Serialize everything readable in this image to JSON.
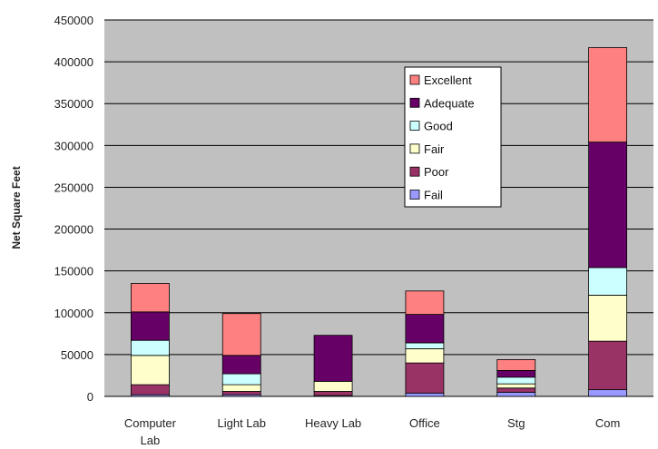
{
  "chart_data": {
    "type": "bar",
    "stacked": true,
    "categories": [
      [
        "Computer",
        "Lab"
      ],
      [
        "Light Lab"
      ],
      [
        "Heavy Lab"
      ],
      [
        "Office"
      ],
      [
        "Stg"
      ],
      [
        "Com"
      ]
    ],
    "ylabel": "Net Square Feet",
    "xlabel": "",
    "ylim": [
      0,
      450000
    ],
    "yticks": [
      "0",
      "50000",
      "100000",
      "150000",
      "200000",
      "250000",
      "300000",
      "350000",
      "400000",
      "450000"
    ],
    "grid": true,
    "legend_position": "upper center, inside plot",
    "series": [
      {
        "name": "Fail",
        "color": "#9999ff",
        "values": [
          2000,
          2000,
          1000,
          4000,
          5000,
          8000
        ]
      },
      {
        "name": "Poor",
        "color": "#993366",
        "values": [
          12000,
          4000,
          5000,
          36000,
          5000,
          58000
        ]
      },
      {
        "name": "Fair",
        "color": "#ffffcc",
        "values": [
          35000,
          8000,
          12000,
          17000,
          5000,
          55000
        ]
      },
      {
        "name": "Good",
        "color": "#ccffff",
        "values": [
          18000,
          13000,
          0,
          7000,
          8000,
          33000
        ]
      },
      {
        "name": "Adequate",
        "color": "#660066",
        "values": [
          34000,
          22000,
          55000,
          34000,
          8000,
          150000
        ]
      },
      {
        "name": "Excellent",
        "color": "#ff8080",
        "values": [
          34000,
          50000,
          0,
          28000,
          13000,
          113000
        ]
      }
    ],
    "legend_order": [
      "Excellent",
      "Adequate",
      "Good",
      "Fair",
      "Poor",
      "Fail"
    ],
    "plot_background": "#c0c0c0"
  }
}
